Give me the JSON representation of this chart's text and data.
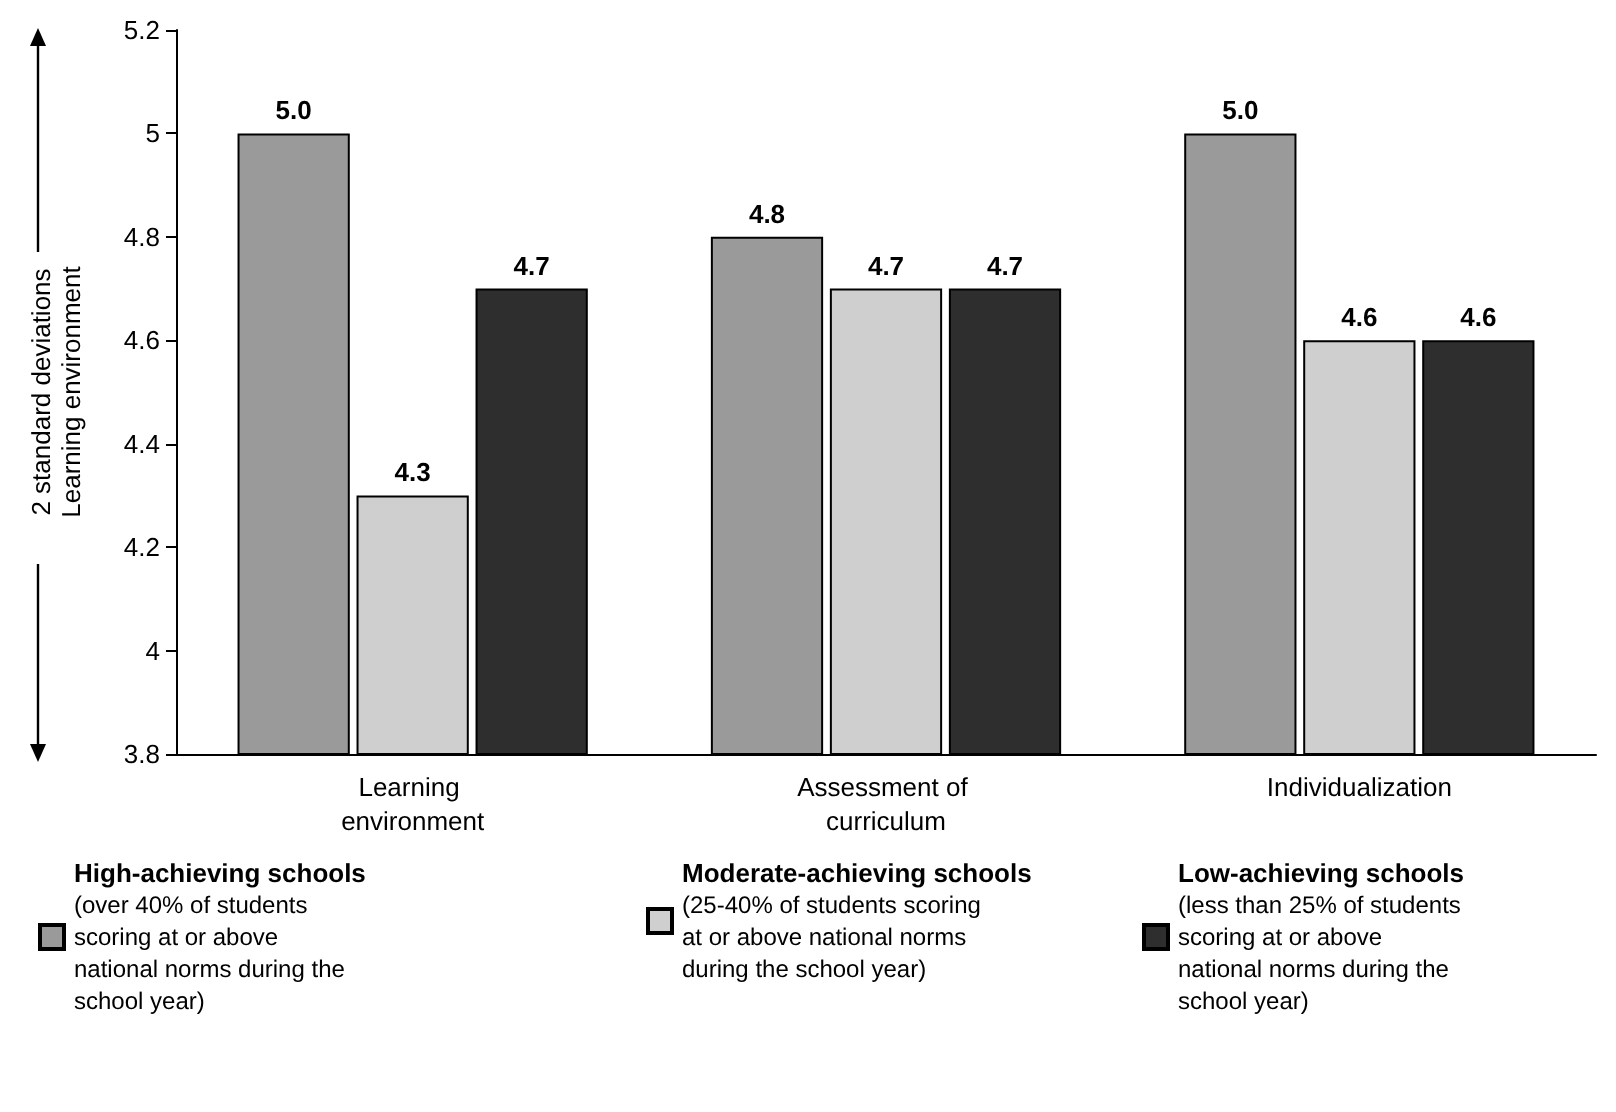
{
  "chart_data": {
    "type": "bar",
    "ylabel": "2 standard deviations\nLearning environment",
    "categories": [
      "Learning environment",
      "Assessment of curriculum",
      "Individualization"
    ],
    "series": [
      {
        "name": "High-achieving schools (over 40% of students scoring at or above national norms during the school year)",
        "color": "#9a9a9a",
        "values": [
          5.0,
          4.8,
          5.0
        ],
        "value_labels": [
          "5.0",
          "4.8",
          "5.0"
        ]
      },
      {
        "name": "Moderate-achieving schools (25-40% of students scoring at or above national norms during the school year)",
        "color": "#cfcfcf",
        "values": [
          4.3,
          4.7,
          4.6
        ],
        "value_labels": [
          "4.3",
          "4.7",
          "4.6"
        ]
      },
      {
        "name": "Low-achieving schools (less than 25% of students scoring at or above national norms during the school year)",
        "color": "#2e2e2e",
        "values": [
          4.7,
          4.7,
          4.6
        ],
        "value_labels": [
          "4.7",
          "4.7",
          "4.6"
        ]
      }
    ],
    "ylim": [
      3.8,
      5.2
    ],
    "yticks": [
      3.8,
      4,
      4.2,
      4.4,
      4.6,
      4.8,
      5,
      5.2
    ],
    "grid": false,
    "legend": "bottom"
  }
}
